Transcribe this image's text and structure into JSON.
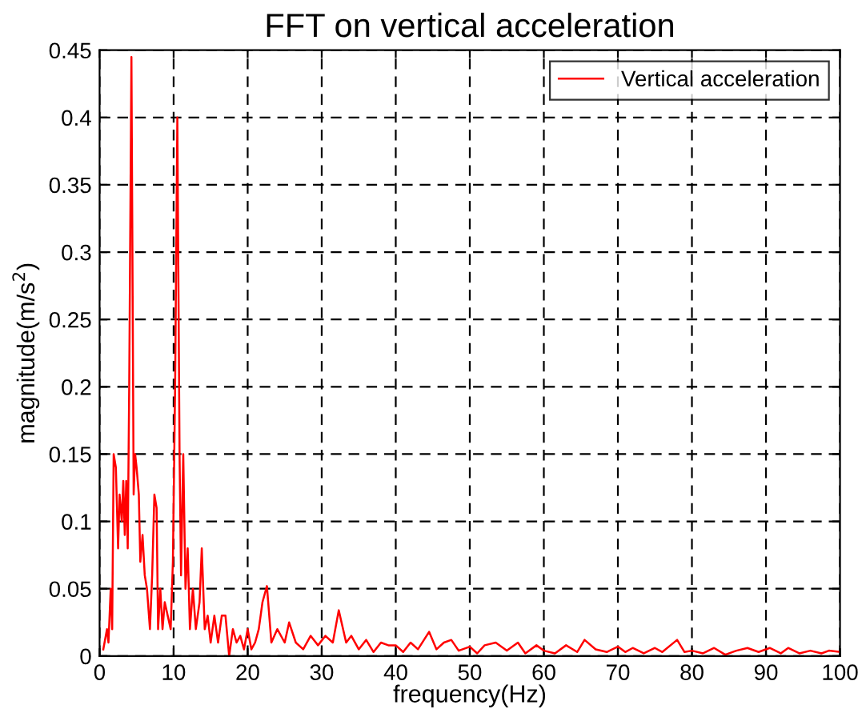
{
  "chart_data": {
    "type": "line",
    "title": "FFT on vertical acceleration",
    "xlabel": "frequency(Hz)",
    "ylabel": "magnitude(m/s$^{2}$)",
    "xlim": [
      0,
      100
    ],
    "ylim": [
      0,
      0.45
    ],
    "xticks": [
      0,
      10,
      20,
      30,
      40,
      50,
      60,
      70,
      80,
      90,
      100
    ],
    "yticks": [
      0,
      0.05,
      0.1,
      0.15,
      0.2,
      0.25,
      0.3,
      0.35,
      0.4,
      0.45
    ],
    "grid": true,
    "legend": "top right",
    "line_style": "solid",
    "marker": "none",
    "series": [
      {
        "name": "Vertical acceleration",
        "color": "#ff0000",
        "x": [
          0.5,
          1,
          1.2,
          1.5,
          1.7,
          1.9,
          2.2,
          2.5,
          2.7,
          3,
          3.2,
          3.4,
          3.6,
          3.8,
          4.0,
          4.3,
          4.6,
          4.8,
          5.0,
          5.3,
          5.5,
          5.8,
          6.1,
          6.4,
          6.8,
          7.1,
          7.4,
          7.7,
          7.9,
          8.2,
          8.5,
          8.8,
          9.2,
          9.6,
          9.9,
          10.2,
          10.5,
          10.8,
          11.0,
          11.3,
          11.6,
          11.9,
          12.2,
          12.6,
          13,
          13.5,
          13.8,
          14.2,
          14.6,
          15,
          15.5,
          16,
          16.5,
          17,
          17.5,
          18,
          18.5,
          19,
          19.5,
          20,
          20.5,
          21,
          21.5,
          22,
          22.6,
          23.2,
          24,
          25,
          25.6,
          26.5,
          27.5,
          28.5,
          29.5,
          30.5,
          31.5,
          32.3,
          33.3,
          34,
          35,
          36,
          37,
          38,
          39,
          40,
          41,
          42,
          43,
          44.5,
          45.5,
          46.5,
          47.5,
          48.5,
          50,
          51,
          52,
          53.5,
          55,
          56.5,
          57.5,
          59,
          60,
          61.5,
          63,
          64.5,
          65.5,
          67,
          68.5,
          70,
          71,
          72,
          73.5,
          75,
          76,
          78,
          79,
          80,
          81.5,
          83,
          84.5,
          86,
          87.5,
          89,
          90.5,
          92,
          93,
          94.5,
          96,
          97.5,
          98.5,
          100
        ],
        "values": [
          0.005,
          0.02,
          0.01,
          0.05,
          0.02,
          0.15,
          0.14,
          0.08,
          0.12,
          0.1,
          0.13,
          0.09,
          0.13,
          0.08,
          0.2,
          0.445,
          0.12,
          0.15,
          0.14,
          0.12,
          0.07,
          0.09,
          0.06,
          0.05,
          0.02,
          0.06,
          0.12,
          0.11,
          0.02,
          0.05,
          0.02,
          0.04,
          0.03,
          0.02,
          0.07,
          0.2,
          0.4,
          0.15,
          0.06,
          0.15,
          0.05,
          0.08,
          0.02,
          0.05,
          0.02,
          0.04,
          0.08,
          0.02,
          0.03,
          0.01,
          0.03,
          0.01,
          0.03,
          0.03,
          0.0,
          0.02,
          0.01,
          0.015,
          0.005,
          0.02,
          0.005,
          0.01,
          0.02,
          0.04,
          0.052,
          0.01,
          0.02,
          0.01,
          0.025,
          0.01,
          0.005,
          0.015,
          0.008,
          0.015,
          0.01,
          0.034,
          0.01,
          0.015,
          0.005,
          0.012,
          0.003,
          0.01,
          0.008,
          0.008,
          0.003,
          0.01,
          0.005,
          0.018,
          0.005,
          0.01,
          0.012,
          0.004,
          0.007,
          0.002,
          0.008,
          0.01,
          0.004,
          0.01,
          0.002,
          0.008,
          0.004,
          0.002,
          0.008,
          0.003,
          0.012,
          0.005,
          0.003,
          0.007,
          0.003,
          0.006,
          0.002,
          0.006,
          0.003,
          0.012,
          0.003,
          0.004,
          0.002,
          0.006,
          0.001,
          0.004,
          0.006,
          0.003,
          0.006,
          0.002,
          0.006,
          0.002,
          0.004,
          0.002,
          0.004,
          0.003
        ]
      }
    ]
  }
}
